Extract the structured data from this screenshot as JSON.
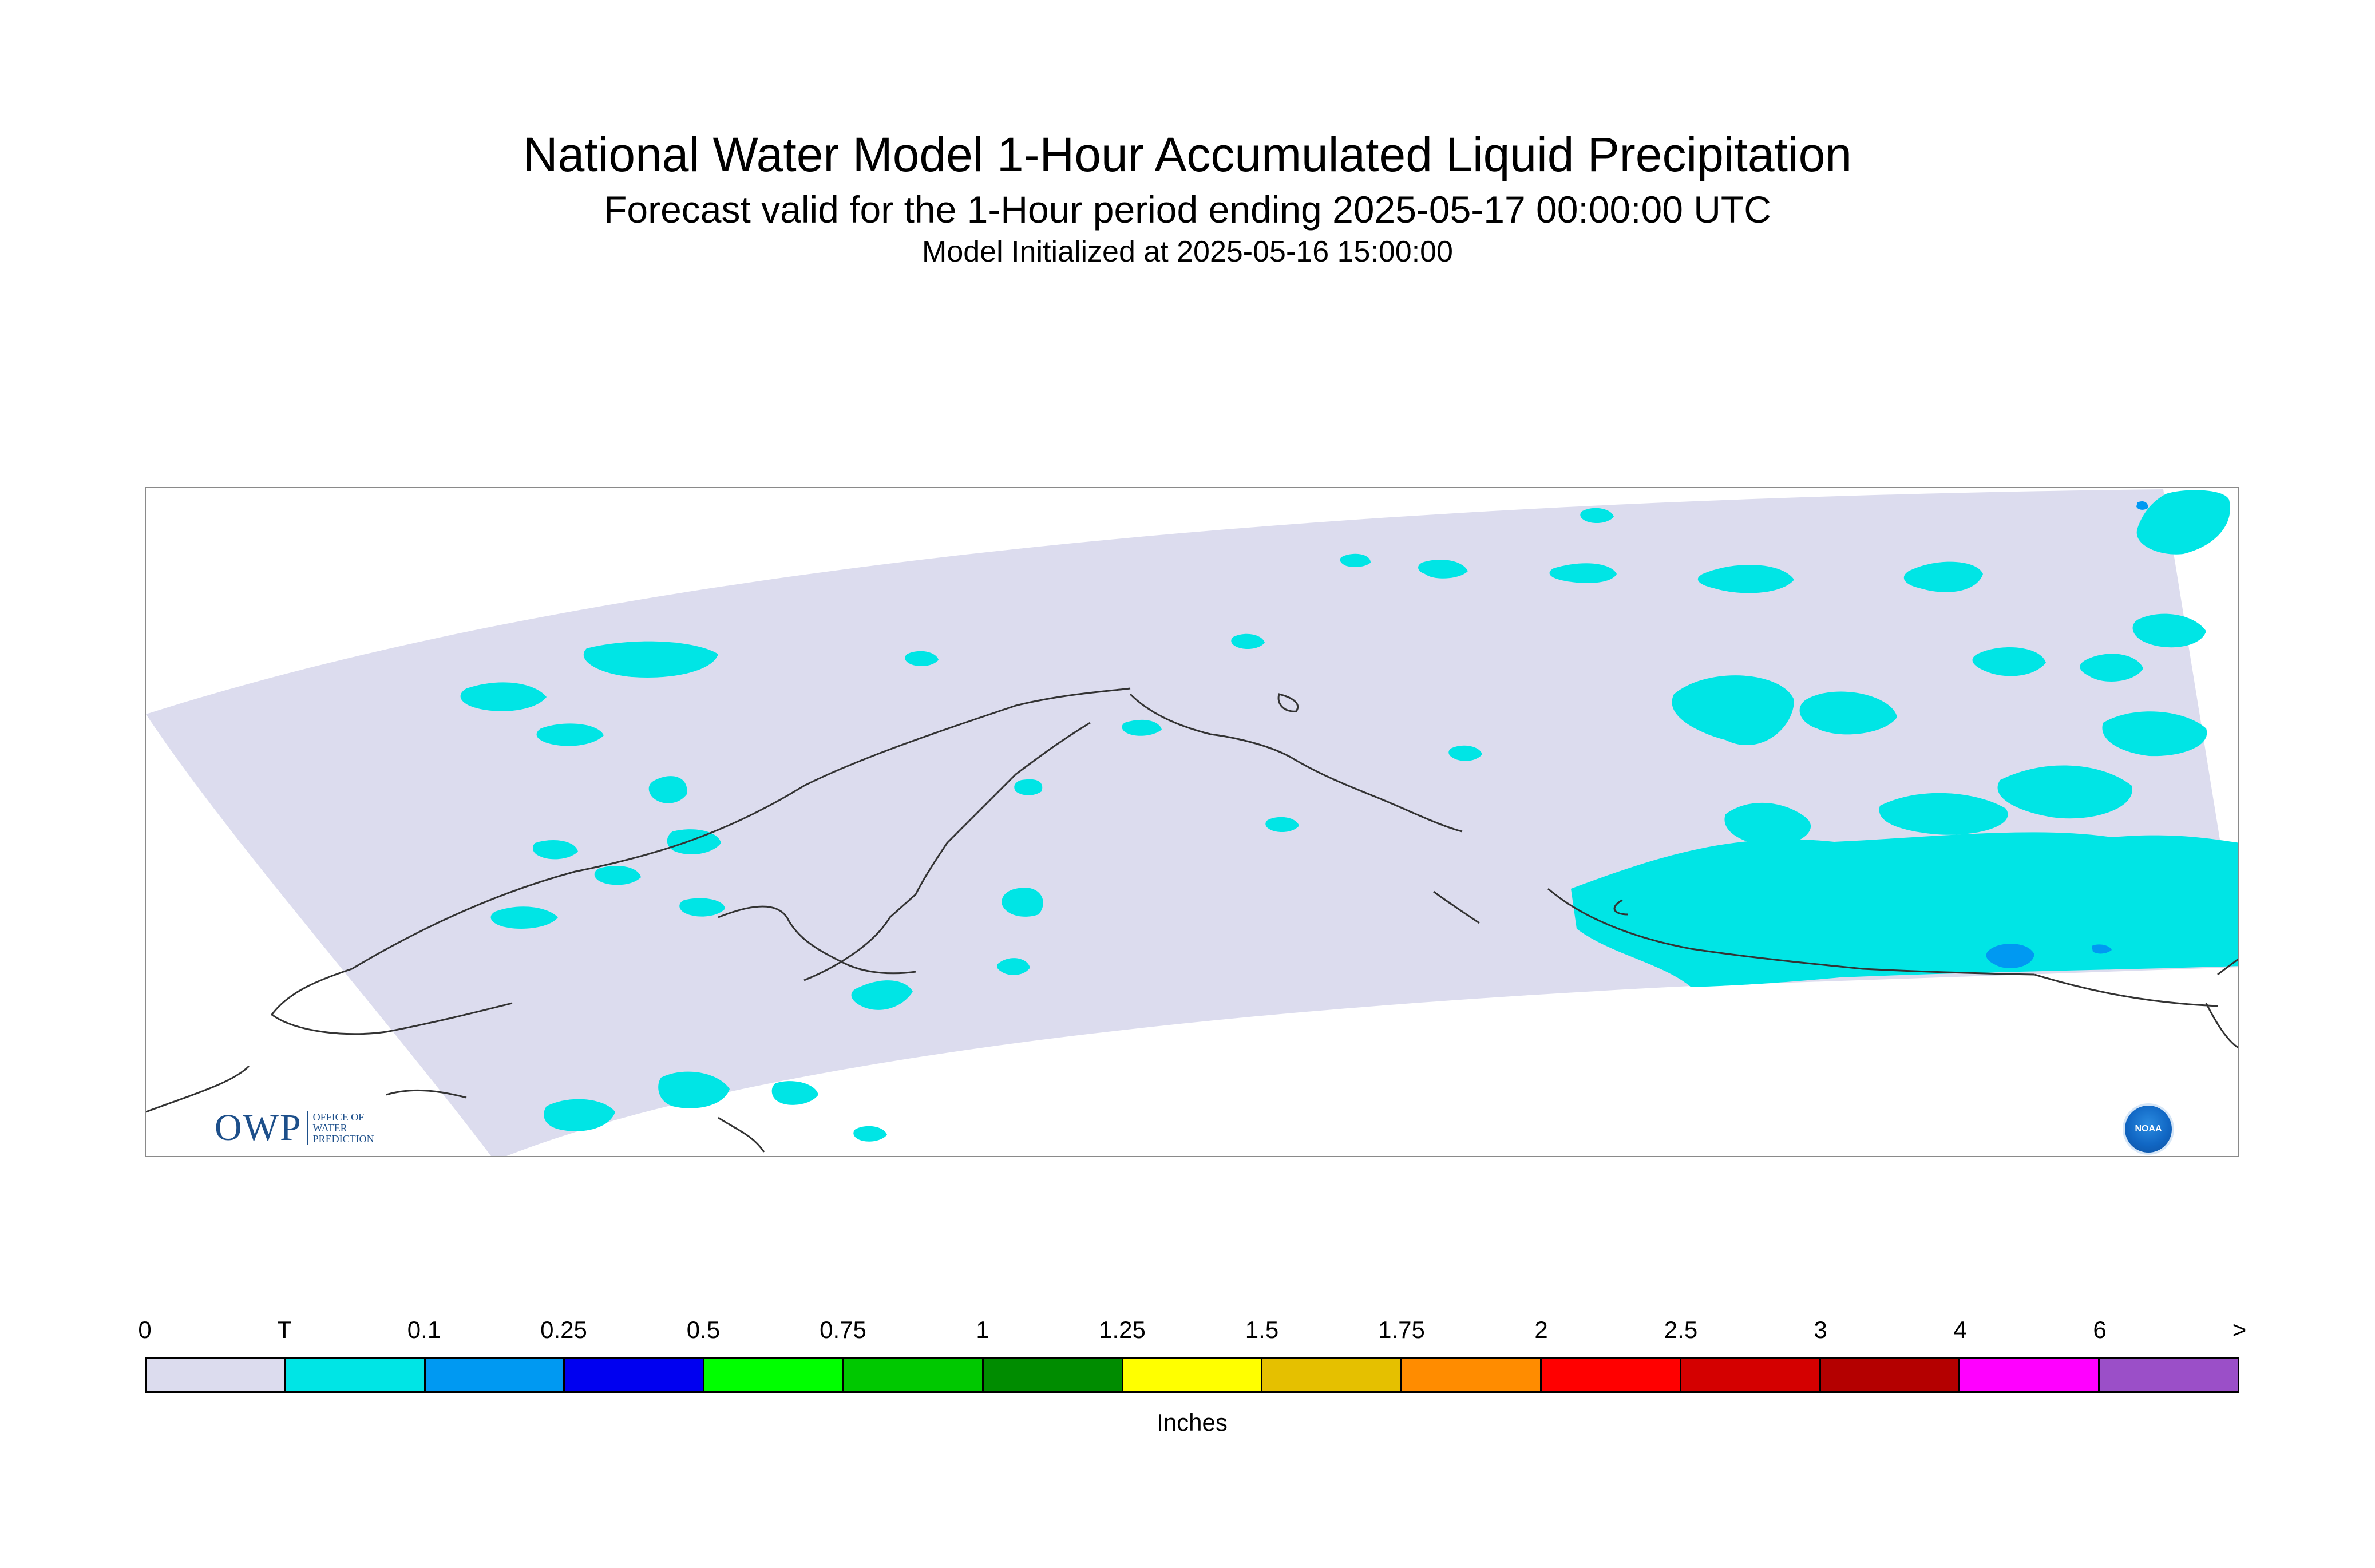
{
  "title": "National Water Model 1-Hour Accumulated Liquid Precipitation",
  "subtitle": "Forecast valid for the 1-Hour period ending 2025-05-17 00:00:00 UTC",
  "init_line": "Model Initialized at 2025-05-16 15:00:00",
  "logos": {
    "owp_text": "OWP",
    "owp_sub": [
      "OFFICE OF",
      "WATER",
      "PREDICTION"
    ],
    "noaa_text": "NOAA"
  },
  "legend": {
    "units": "Inches",
    "ticks": [
      "0",
      "T",
      "0.1",
      "0.25",
      "0.5",
      "0.75",
      "1",
      "1.25",
      "1.5",
      "1.75",
      "2",
      "2.5",
      "3",
      "4",
      "6",
      ">"
    ],
    "colors": [
      "#dcdcee",
      "#00e5e5",
      "#0099f2",
      "#0000f0",
      "#00ff00",
      "#00c800",
      "#008c00",
      "#ffff00",
      "#e5c000",
      "#ff8c00",
      "#ff0000",
      "#d40000",
      "#b40000",
      "#ff00ff",
      "#9b4fc8"
    ]
  },
  "colors": {
    "domain_fill": "#dcdcee",
    "trace": "#00e5e5",
    "light_rain": "#0099f2",
    "coastline": "#333333",
    "owp_blue": "#1d4f8a",
    "noaa_blue": "#1167c4"
  }
}
